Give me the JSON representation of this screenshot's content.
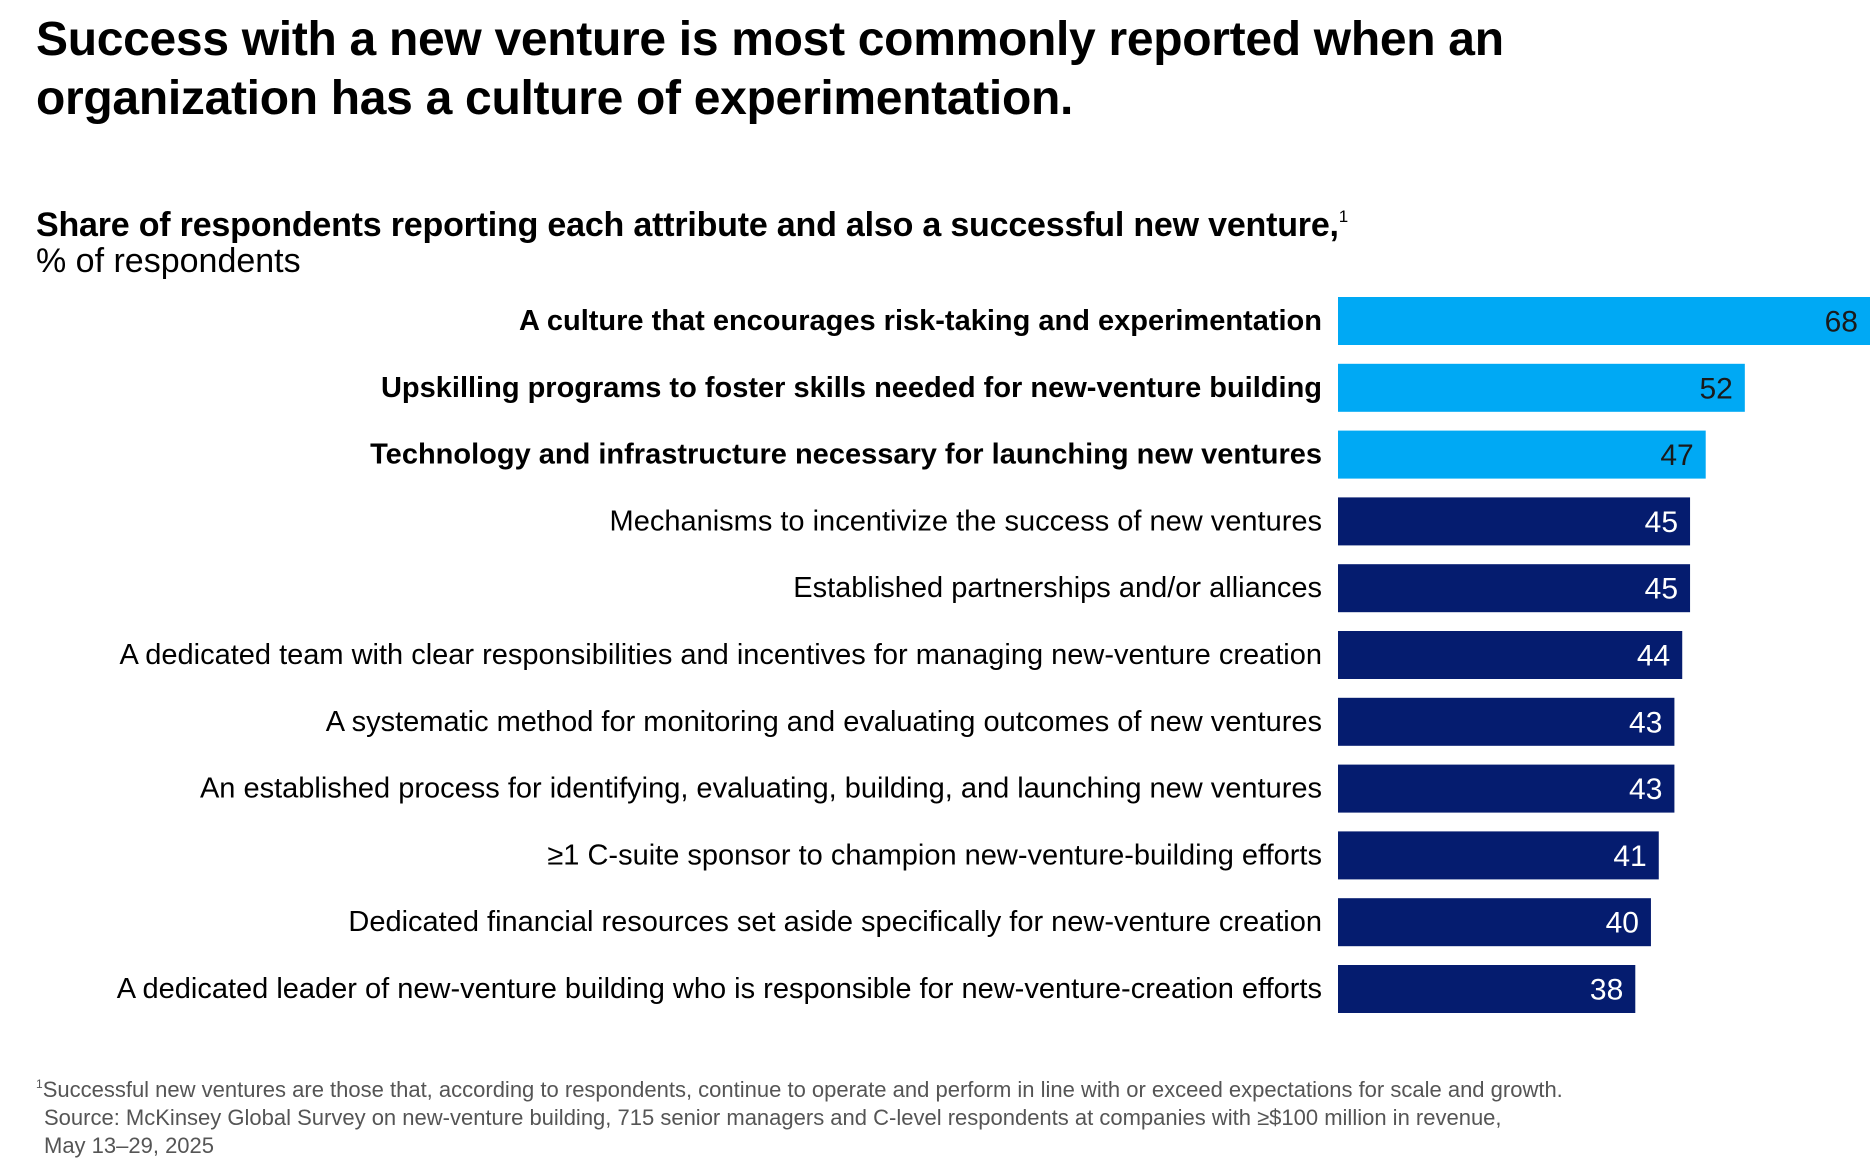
{
  "title": "Success with a new venture is most commonly reported when an organization has a culture of experimentation.",
  "subtitle": "Share of respondents reporting each attribute and also a successful new venture,",
  "subtitle_marker": "1",
  "unit_label": "% of respondents",
  "colors": {
    "highlight": "#00a9f4",
    "base": "#051c6f",
    "label_on_highlight": "#1a1a1a",
    "label_on_base": "#ffffff"
  },
  "chart_data": {
    "type": "bar",
    "orientation": "horizontal",
    "title": "Share of respondents reporting each attribute and also a successful new venture,",
    "xlabel": "% of respondents",
    "ylabel": "",
    "xlim": [
      0,
      68
    ],
    "grid": false,
    "categories": [
      "A culture that encourages risk-taking and experimentation",
      "Upskilling programs to foster skills needed for new-venture building",
      "Technology and infrastructure necessary for launching new ventures",
      "Mechanisms to incentivize the success of new ventures",
      "Established partnerships and/or alliances",
      "A dedicated team with clear responsibilities and incentives for managing new-venture creation",
      "A systematic method for monitoring and evaluating outcomes of new ventures",
      "An established process for identifying, evaluating, building, and launching new ventures",
      "≥1 C-suite sponsor to champion new-venture-building efforts",
      "Dedicated financial resources set aside specifically for new-venture creation",
      "A dedicated leader of new-venture building who is responsible for new-venture-creation efforts"
    ],
    "values": [
      68,
      52,
      47,
      45,
      45,
      44,
      43,
      43,
      41,
      40,
      38
    ],
    "highlighted": [
      true,
      true,
      true,
      false,
      false,
      false,
      false,
      false,
      false,
      false,
      false
    ]
  },
  "footnotes": {
    "marker": "1",
    "note": "Successful new ventures are those that, according to respondents, continue to operate and perform in line with or exceed expectations for scale and growth.",
    "source_line1": "Source: McKinsey Global Survey on new-venture building, 715 senior managers and C-level respondents at companies with ≥$100 million in revenue,",
    "source_line2": "May 13–29, 2025"
  }
}
